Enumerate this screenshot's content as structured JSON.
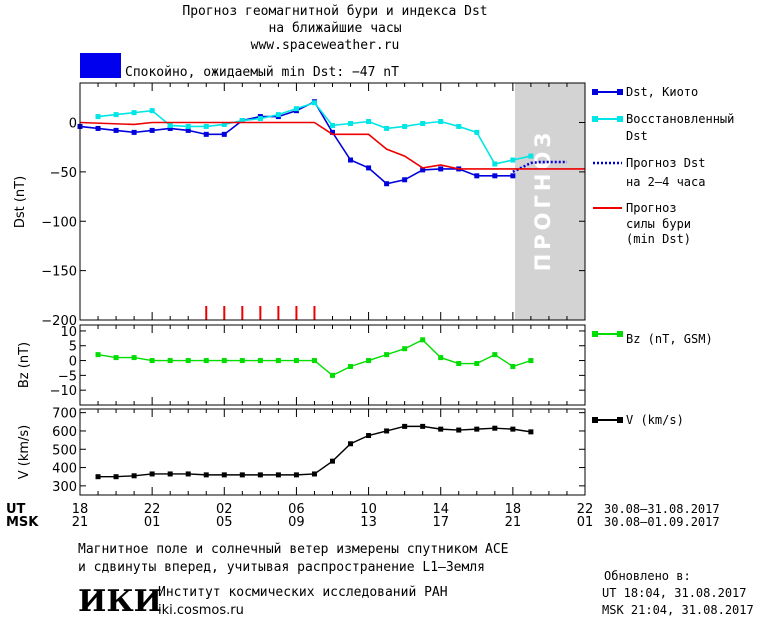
{
  "header": {
    "title_line1": "Прогноз геомагнитной бури и индекса Dst",
    "title_line2": "на ближайшие часы",
    "url": "www.spaceweather.ru",
    "status_color": "#0000ee",
    "status_text": "Спокойно, ожидаемый min Dst: −47 nT"
  },
  "forecast_zone_label": "ПРОГНОЗ",
  "legend": {
    "dst_kyoto": "Dst, Киото",
    "restored_line1": "Восстановленный",
    "restored_line2": "Dst",
    "forecast24_line1": "Прогноз Dst",
    "forecast24_line2": "на 2–4 часа",
    "storm_line1": "Прогноз",
    "storm_line2": "силы бури",
    "storm_line3": "(min Dst)",
    "bz": "Bz (nT, GSM)",
    "v": "V (km/s)"
  },
  "time_axis": {
    "ut_label": "UT",
    "msk_label": "MSK",
    "ut_range": "30.08–31.08.2017",
    "msk_range": "30.08–01.09.2017"
  },
  "footer": {
    "line1": "Магнитное поле и солнечный ветер измерены спутником ACE",
    "line2": "и сдвинуты вперед, учитывая распространение L1–Земля",
    "institute": "Институт космических исследований РАН",
    "institute_url": "iki.cosmos.ru",
    "logo": "ИКИ",
    "updated_label": "Обновлено в:",
    "updated_ut": "UT  18:04, 31.08.2017",
    "updated_msk": "MSK 21:04, 31.08.2017"
  },
  "chart_data": [
    {
      "type": "line",
      "name": "dst",
      "ylabel": "Dst (nT)",
      "ylim": [
        -200,
        40
      ],
      "yticks": [
        0,
        -50,
        -100,
        -150,
        -200
      ],
      "xlim": [
        18,
        46
      ],
      "forecast_from": 42,
      "series": [
        {
          "name": "Dst, Киото",
          "color": "#0000dd",
          "x": [
            18,
            19,
            20,
            21,
            22,
            23,
            24,
            25,
            26,
            27,
            28,
            29,
            30,
            31,
            32,
            33,
            34,
            35,
            36,
            37,
            38,
            39,
            40,
            41,
            42
          ],
          "y": [
            -4,
            -6,
            -8,
            -10,
            -8,
            -6,
            -8,
            -12,
            -12,
            2,
            6,
            6,
            12,
            21,
            -10,
            -38,
            -46,
            -62,
            -58,
            -48,
            -47,
            -47,
            -54,
            -54,
            -54
          ]
        },
        {
          "name": "Восстановленный Dst",
          "color": "#00e5e5",
          "x": [
            19,
            20,
            21,
            22,
            23,
            24,
            25,
            26,
            27,
            28,
            29,
            30,
            31,
            32,
            33,
            34,
            35,
            36,
            37,
            38,
            39,
            40,
            41,
            42,
            43
          ],
          "y": [
            6,
            8,
            10,
            12,
            -3,
            -4,
            -4,
            -2,
            2,
            4,
            8,
            14,
            20,
            -3,
            -1,
            1,
            -6,
            -4,
            -1,
            1,
            -4,
            -10,
            -42,
            -38,
            -34
          ]
        },
        {
          "name": "Прогноз Dst на 2–4 часа",
          "color": "#0000dd",
          "dashed": true,
          "x": [
            42,
            43,
            43.5,
            44,
            45
          ],
          "y": [
            -50,
            -41,
            -40,
            -40,
            -40
          ]
        },
        {
          "name": "Прогноз силы бури (min Dst)",
          "color": "#ee0000",
          "x": [
            18,
            21,
            22,
            28,
            30,
            31,
            32,
            33,
            34,
            35,
            36,
            37,
            38,
            39,
            40,
            41,
            42,
            43,
            44,
            45,
            46
          ],
          "y": [
            0,
            -2,
            0,
            0,
            0,
            0,
            -12,
            -12,
            -12,
            -27,
            -34,
            -46,
            -43,
            -47,
            -47,
            -47,
            -47,
            -47,
            -47,
            -47,
            -47
          ]
        }
      ],
      "storm_markers_x": [
        25,
        26,
        27,
        28,
        29,
        30,
        31
      ],
      "storm_markers_color": "#ee0000"
    },
    {
      "type": "line",
      "name": "bz",
      "ylabel": "Bz (nT)",
      "ylim": [
        -15,
        12
      ],
      "yticks": [
        10,
        5,
        0,
        -5,
        -10
      ],
      "series": [
        {
          "name": "Bz (nT, GSM)",
          "color": "#00dd00",
          "x": [
            19,
            20,
            21,
            22,
            23,
            24,
            25,
            26,
            27,
            28,
            29,
            30,
            31,
            32,
            33,
            34,
            35,
            36,
            37,
            38,
            39,
            40,
            41,
            42,
            43
          ],
          "y": [
            2,
            1,
            1,
            0,
            0,
            0,
            0,
            0,
            0,
            0,
            0,
            0,
            0,
            -5,
            -2,
            0,
            2,
            4,
            7,
            1,
            -1,
            -1,
            2,
            -2,
            0
          ]
        }
      ]
    },
    {
      "type": "line",
      "name": "v",
      "ylabel": "V (km/s)",
      "ylim": [
        250,
        720
      ],
      "yticks": [
        700,
        600,
        500,
        400,
        300
      ],
      "series": [
        {
          "name": "V (km/s)",
          "color": "#000000",
          "x": [
            19,
            20,
            21,
            22,
            23,
            24,
            25,
            26,
            27,
            28,
            29,
            30,
            31,
            32,
            33,
            34,
            35,
            36,
            37,
            38,
            39,
            40,
            41,
            42,
            43
          ],
          "y": [
            350,
            350,
            355,
            365,
            365,
            365,
            360,
            360,
            360,
            360,
            360,
            360,
            365,
            435,
            530,
            575,
            600,
            625,
            625,
            610,
            605,
            610,
            615,
            610,
            595
          ]
        }
      ]
    }
  ],
  "x_ticks_ut": [
    "18",
    "22",
    "02",
    "06",
    "10",
    "14",
    "18",
    "22"
  ],
  "x_ticks_msk": [
    "21",
    "01",
    "05",
    "09",
    "13",
    "17",
    "21",
    "01"
  ]
}
